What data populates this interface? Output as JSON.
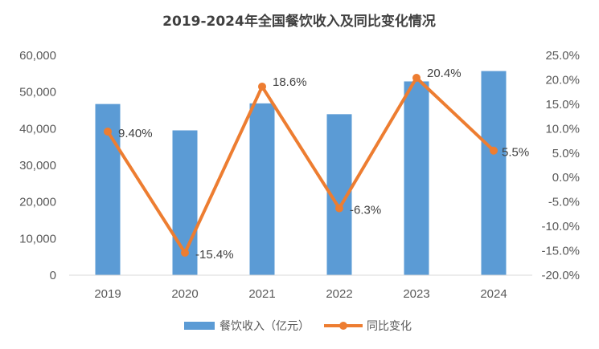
{
  "chart_data": {
    "type": "bar+line",
    "title": "2019-2024年全国餐饮收入及同比变化情况",
    "categories": [
      "2019",
      "2020",
      "2021",
      "2022",
      "2023",
      "2024"
    ],
    "series": [
      {
        "name": "餐饮收入（亿元）",
        "type": "bar",
        "axis": "left",
        "color": "#5B9BD5",
        "values": [
          46721,
          39527,
          46895,
          43941,
          52890,
          55718
        ]
      },
      {
        "name": "同比变化",
        "type": "line",
        "axis": "right",
        "color": "#ED7D31",
        "values": [
          9.4,
          -15.4,
          18.6,
          -6.3,
          20.4,
          5.5
        ],
        "labels": [
          "9.40%",
          "-15.4%",
          "18.6%",
          "-6.3%",
          "20.4%",
          "5.5%"
        ]
      }
    ],
    "y_left": {
      "range": [
        0,
        60000
      ],
      "ticks": [
        0,
        10000,
        20000,
        30000,
        40000,
        50000,
        60000
      ],
      "tick_labels": [
        "0",
        "10,000",
        "20,000",
        "30,000",
        "40,000",
        "50,000",
        "60,000"
      ]
    },
    "y_right": {
      "range": [
        -20,
        25
      ],
      "ticks": [
        -20,
        -15,
        -10,
        -5,
        0,
        5,
        10,
        15,
        20,
        25
      ],
      "tick_labels": [
        "-20.0%",
        "-15.0%",
        "-10.0%",
        "-5.0%",
        "0.0%",
        "5.0%",
        "10.0%",
        "15.0%",
        "20.0%",
        "25.0%"
      ]
    },
    "grid": false,
    "legend_position": "bottom"
  }
}
